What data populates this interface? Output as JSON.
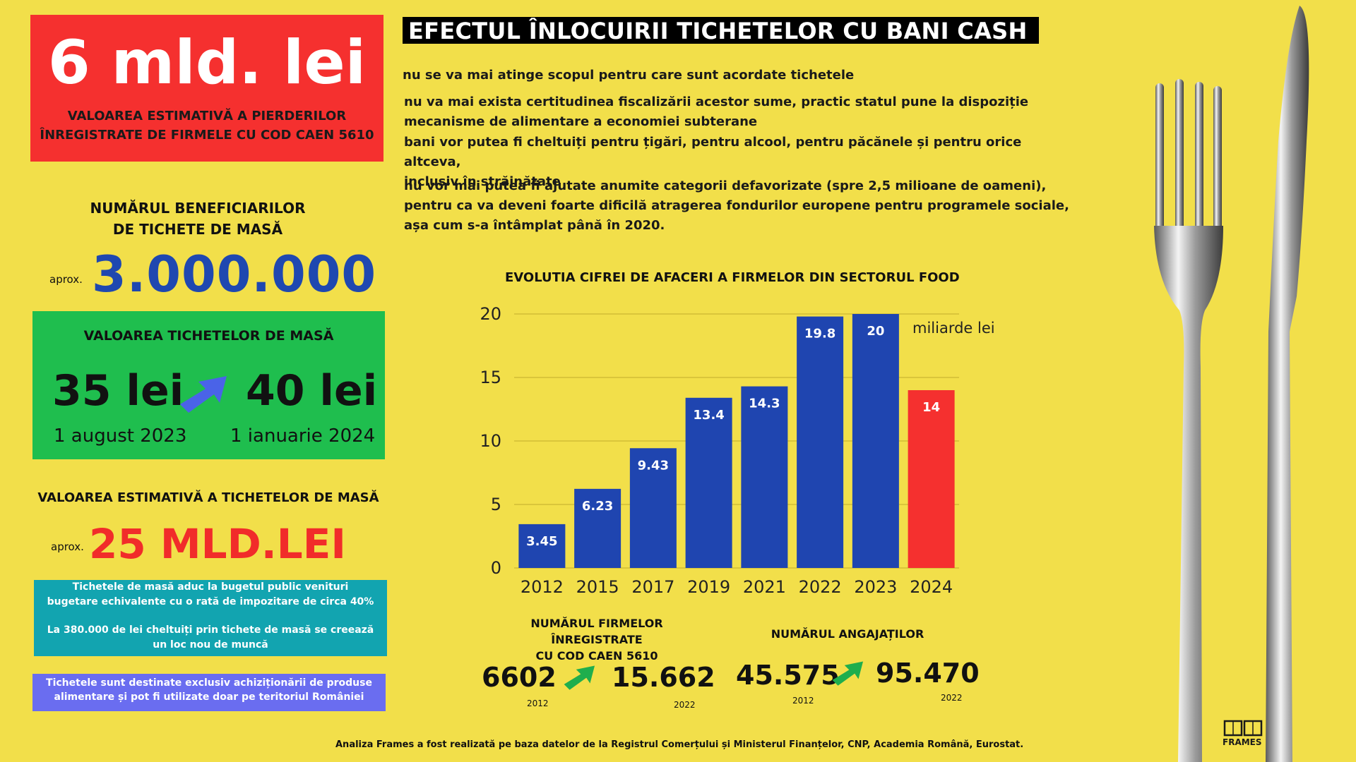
{
  "loss": {
    "value": "6 mld. lei",
    "label_line1": "VALOAREA ESTIMATIVĂ A PIERDERILOR",
    "label_line2": "ÎNREGISTRATE DE FIRMELE CU COD CAEN 5610"
  },
  "beneficiaries": {
    "title_line1": "NUMĂRUL BENEFICIARILOR",
    "title_line2": "DE TICHETE DE MASĂ",
    "prefix": "aprox.",
    "value": "3.000.000"
  },
  "ticket_value": {
    "title": "VALOAREA TICHETELOR DE MASĂ",
    "from": "35 lei",
    "to": "40 lei",
    "from_date": "1 august 2023",
    "to_date": "1 ianuarie 2024",
    "arrow_color": "#4a63e8"
  },
  "estimated_value": {
    "title": "VALOAREA ESTIMATIVĂ A TICHETELOR DE MASĂ",
    "prefix": "aprox.",
    "value": "25 MLD.LEI"
  },
  "notes": {
    "teal_line1": "Tichetele de masă aduc la bugetul public venituri",
    "teal_line2": "bugetare echivalente cu o rată de impozitare de circa 40%",
    "teal_line3": "La 380.000 de lei cheltuiți prin tichete de masă se creează",
    "teal_line4": "un loc nou de muncă",
    "purple_line1": "Tichetele sunt destinate exclusiv achiziționării de produse",
    "purple_line2": "alimentare  și pot fi utilizate doar pe teritoriul României"
  },
  "headline": "EFECTUL ÎNLOCUIRII TICHETELOR CU BANI CASH",
  "effects": {
    "e1": "nu se va mai atinge scopul pentru care sunt acordate tichetele",
    "e2_line1": "nu va mai exista certitudinea fiscalizării acestor sume, practic statul pune la dispoziție",
    "e2_line2": "mecanisme de alimentare a economiei subterane",
    "e3_line1": "bani vor putea fi cheltuiți pentru țigări, pentru alcool, pentru păcănele și pentru orice altceva,",
    "e3_line2": "inclusiv în străinătate",
    "e4_line1": "nu vor mai putea fi ajutate anumite categorii defavorizate (spre 2,5 milioane de oameni),",
    "e4_line2": "pentru ca va deveni foarte dificilă atragerea fondurilor europene pentru programele sociale,",
    "e4_line3": "așa cum s-a întâmplat până în 2020."
  },
  "chart_data": {
    "type": "bar",
    "title": "EVOLUTIA CIFREI DE AFACERI A FIRMELOR DIN SECTORUL FOOD",
    "unit_label": "miliarde lei",
    "categories": [
      "2012",
      "2015",
      "2017",
      "2019",
      "2021",
      "2022",
      "2023",
      "2024"
    ],
    "values": [
      3.45,
      6.23,
      9.43,
      13.4,
      14.3,
      19.8,
      20,
      14
    ],
    "value_labels": [
      "3.45",
      "6.23",
      "9.43",
      "13.4",
      "14.3",
      "19.8",
      "20",
      "14"
    ],
    "bar_colors": [
      "#1f45b0",
      "#1f45b0",
      "#1f45b0",
      "#1f45b0",
      "#1f45b0",
      "#1f45b0",
      "#1f45b0",
      "#f5302f"
    ],
    "ylim": [
      0,
      20
    ],
    "yticks": [
      0,
      5,
      10,
      15,
      20
    ],
    "grid": true
  },
  "stats": {
    "firms": {
      "title_line1": "NUMĂRUL FIRMELOR ÎNREGISTRATE",
      "title_line2": "CU COD CAEN 5610",
      "from": "6602",
      "from_year": "2012",
      "to": "15.662",
      "to_year": "2022"
    },
    "employees": {
      "title": "NUMĂRUL ANGAJAȚILOR",
      "from": "45.575",
      "from_year": "2012",
      "to": "95.470",
      "to_year": "2022"
    },
    "arrow_color": "#1fae4d"
  },
  "footer": "Analiza Frames a fost realizată pe baza datelor de la Registrul Comerțului și Ministerul Finanțelor, CNP, Academia Română, Eurostat.",
  "logo_text": "FRAMES",
  "icons": [
    "up-right-arrow-icon",
    "fork-icon",
    "knife-icon",
    "frames-logo-icon"
  ]
}
